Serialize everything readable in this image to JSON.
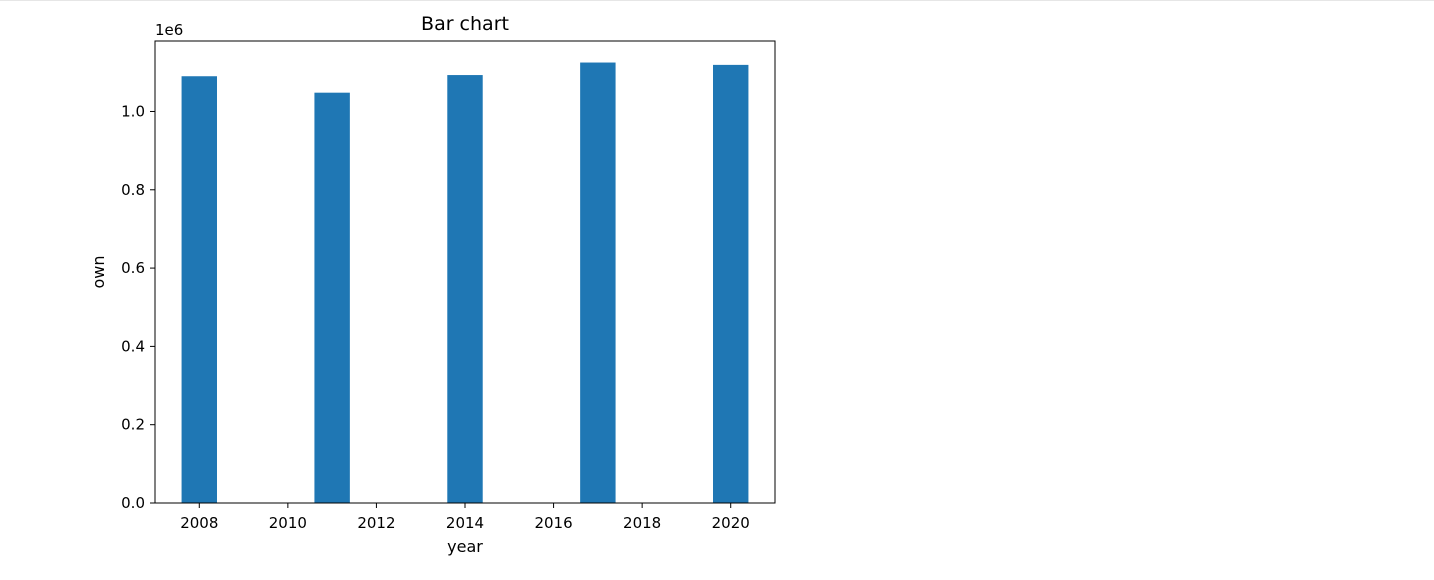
{
  "chart_data": {
    "type": "bar",
    "title": "Bar chart",
    "xlabel": "year",
    "ylabel": "own",
    "y_offset_label": "1e6",
    "x": [
      2008,
      2011,
      2014,
      2017,
      2020
    ],
    "values": [
      1090000,
      1048000,
      1093000,
      1125000,
      1119000
    ],
    "bar_width": 0.8,
    "xlim": [
      2007.0,
      2021.0
    ],
    "ylim": [
      0,
      1180000
    ],
    "x_ticks": [
      2008,
      2010,
      2012,
      2014,
      2016,
      2018,
      2020
    ],
    "y_ticks": [
      {
        "value": 0,
        "label": "0.0"
      },
      {
        "value": 200000,
        "label": "0.2"
      },
      {
        "value": 400000,
        "label": "0.4"
      },
      {
        "value": 600000,
        "label": "0.6"
      },
      {
        "value": 800000,
        "label": "0.8"
      },
      {
        "value": 1000000,
        "label": "1.0"
      }
    ],
    "grid": false,
    "bar_color": "#1f77b4"
  }
}
